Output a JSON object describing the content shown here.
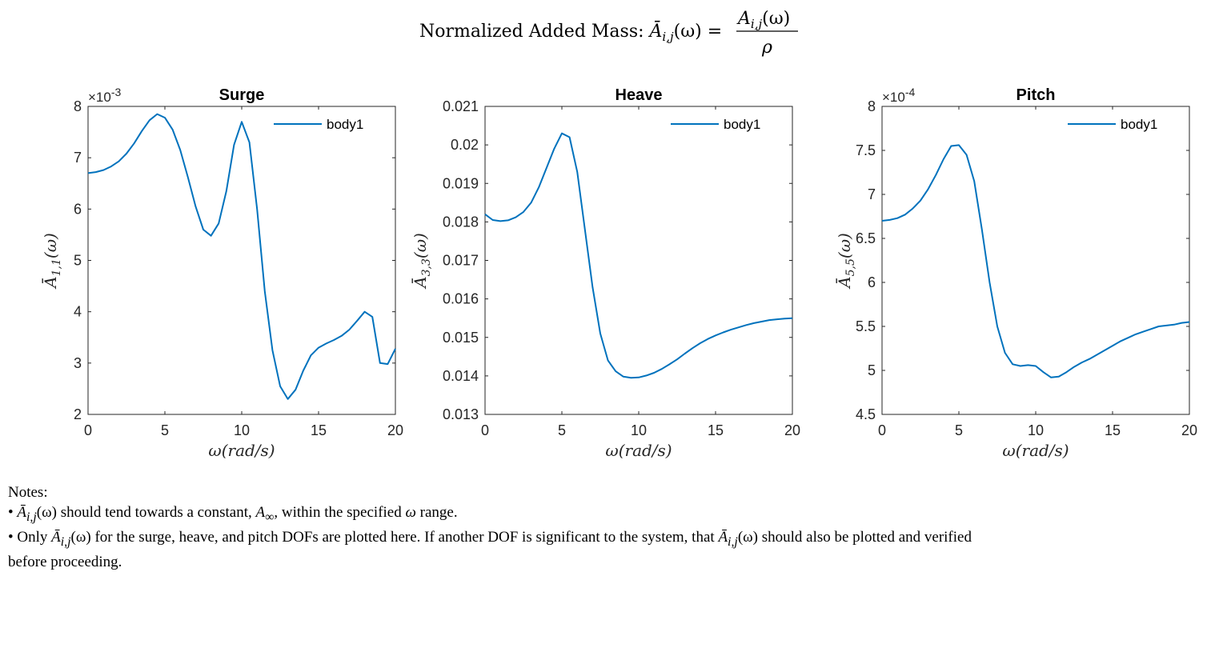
{
  "suptitle": {
    "prefix": "Normalized Added Mass: ",
    "lhs": "Ā",
    "lhs_sub": "i,j",
    "lhs_arg": "(ω) =",
    "num": "A",
    "num_sub": "i,j",
    "num_arg": "(ω)",
    "den": "ρ"
  },
  "chart_data": [
    {
      "type": "line",
      "title": "Surge",
      "xlabel": "ω(rad/s)",
      "ylabel_base": "Ā",
      "ylabel_sub": "1,1",
      "ylabel_arg": "(ω)",
      "exponent": "×10",
      "exponent_power": "-3",
      "xlim": [
        0,
        20
      ],
      "ylim": [
        2,
        8
      ],
      "xticks": [
        "0",
        "5",
        "10",
        "15",
        "20"
      ],
      "yticks": [
        "2",
        "3",
        "4",
        "5",
        "6",
        "7",
        "8"
      ],
      "legend": "body1",
      "legend_position": "top-right",
      "color": "#0072BD",
      "series": [
        {
          "name": "body1",
          "x": [
            0,
            0.5,
            1,
            1.5,
            2,
            2.5,
            3,
            3.5,
            4,
            4.5,
            5,
            5.5,
            6,
            6.5,
            7,
            7.5,
            8,
            8.5,
            9,
            9.5,
            10,
            10.5,
            11,
            11.5,
            12,
            12.5,
            13,
            13.5,
            14,
            14.5,
            15,
            15.5,
            16,
            16.5,
            17,
            17.5,
            18,
            18.5,
            19,
            19.5,
            20
          ],
          "y": [
            6.7,
            6.72,
            6.76,
            6.83,
            6.93,
            7.08,
            7.28,
            7.52,
            7.73,
            7.85,
            7.78,
            7.55,
            7.15,
            6.62,
            6.05,
            5.6,
            5.48,
            5.72,
            6.35,
            7.25,
            7.7,
            7.3,
            6.0,
            4.4,
            3.25,
            2.55,
            2.3,
            2.48,
            2.85,
            3.15,
            3.3,
            3.38,
            3.45,
            3.53,
            3.65,
            3.82,
            4.0,
            3.9,
            3.0,
            2.98,
            3.28
          ]
        }
      ]
    },
    {
      "type": "line",
      "title": "Heave",
      "xlabel": "ω(rad/s)",
      "ylabel_base": "Ā",
      "ylabel_sub": "3,3",
      "ylabel_arg": "(ω)",
      "exponent": "",
      "exponent_power": "",
      "xlim": [
        0,
        20
      ],
      "ylim": [
        0.013,
        0.021
      ],
      "xticks": [
        "0",
        "5",
        "10",
        "15",
        "20"
      ],
      "yticks": [
        "0.013",
        "0.014",
        "0.015",
        "0.016",
        "0.017",
        "0.018",
        "0.019",
        "0.02",
        "0.021"
      ],
      "legend": "body1",
      "legend_position": "top-right",
      "color": "#0072BD",
      "series": [
        {
          "name": "body1",
          "x": [
            0,
            0.5,
            1,
            1.5,
            2,
            2.5,
            3,
            3.5,
            4,
            4.5,
            5,
            5.5,
            6,
            6.5,
            7,
            7.5,
            8,
            8.5,
            9,
            9.5,
            10,
            10.5,
            11,
            11.5,
            12,
            12.5,
            13,
            13.5,
            14,
            14.5,
            15,
            15.5,
            16,
            16.5,
            17,
            17.5,
            18,
            18.5,
            19,
            19.5,
            20
          ],
          "y": [
            0.0182,
            0.01805,
            0.01802,
            0.01804,
            0.01812,
            0.01826,
            0.0185,
            0.0189,
            0.0194,
            0.0199,
            0.0203,
            0.0202,
            0.0193,
            0.0178,
            0.0163,
            0.0151,
            0.0144,
            0.01412,
            0.01398,
            0.01395,
            0.01396,
            0.01401,
            0.01408,
            0.01418,
            0.0143,
            0.01443,
            0.01458,
            0.01472,
            0.01485,
            0.01496,
            0.01505,
            0.01513,
            0.0152,
            0.01526,
            0.01532,
            0.01537,
            0.01541,
            0.01545,
            0.01547,
            0.01549,
            0.0155
          ]
        }
      ]
    },
    {
      "type": "line",
      "title": "Pitch",
      "xlabel": "ω(rad/s)",
      "ylabel_base": "Ā",
      "ylabel_sub": "5,5",
      "ylabel_arg": "(ω)",
      "exponent": "×10",
      "exponent_power": "-4",
      "xlim": [
        0,
        20
      ],
      "ylim": [
        4.5,
        8
      ],
      "xticks": [
        "0",
        "5",
        "10",
        "15",
        "20"
      ],
      "yticks": [
        "4.5",
        "5",
        "5.5",
        "6",
        "6.5",
        "7",
        "7.5",
        "8"
      ],
      "legend": "body1",
      "legend_position": "top-right",
      "color": "#0072BD",
      "series": [
        {
          "name": "body1",
          "x": [
            0,
            0.5,
            1,
            1.5,
            2,
            2.5,
            3,
            3.5,
            4,
            4.5,
            5,
            5.5,
            6,
            6.5,
            7,
            7.5,
            8,
            8.5,
            9,
            9.5,
            10,
            10.5,
            11,
            11.5,
            12,
            12.5,
            13,
            13.5,
            14,
            14.5,
            15,
            15.5,
            16,
            16.5,
            17,
            17.5,
            18,
            18.5,
            19,
            19.5,
            20
          ],
          "y": [
            6.7,
            6.71,
            6.73,
            6.77,
            6.84,
            6.93,
            7.06,
            7.22,
            7.4,
            7.55,
            7.56,
            7.45,
            7.15,
            6.6,
            6.0,
            5.5,
            5.2,
            5.07,
            5.05,
            5.06,
            5.05,
            4.98,
            4.92,
            4.93,
            4.98,
            5.04,
            5.09,
            5.13,
            5.18,
            5.23,
            5.28,
            5.33,
            5.37,
            5.41,
            5.44,
            5.47,
            5.5,
            5.51,
            5.52,
            5.54,
            5.55
          ]
        }
      ]
    }
  ],
  "notes": {
    "heading": "Notes:",
    "bullet1_a": "• ",
    "bullet1_sym": "Ā",
    "bullet1_sub": "i,j",
    "bullet1_b": "(ω) should tend towards a constant, ",
    "bullet1_ainf": "A",
    "bullet1_ainf_sub": "∞",
    "bullet1_c": ", within the specified ",
    "bullet1_w": "ω",
    "bullet1_d": " range.",
    "bullet2_a": "• Only ",
    "bullet2_sym": "Ā",
    "bullet2_sub": "i,j",
    "bullet2_b": "(ω) for the surge, heave, and pitch DOFs are plotted here. If another DOF is significant to the system, that ",
    "bullet2_sym2": "Ā",
    "bullet2_sub2": "i,j",
    "bullet2_c": "(ω) should also be plotted and verified",
    "bullet2_d": "before proceeding."
  }
}
